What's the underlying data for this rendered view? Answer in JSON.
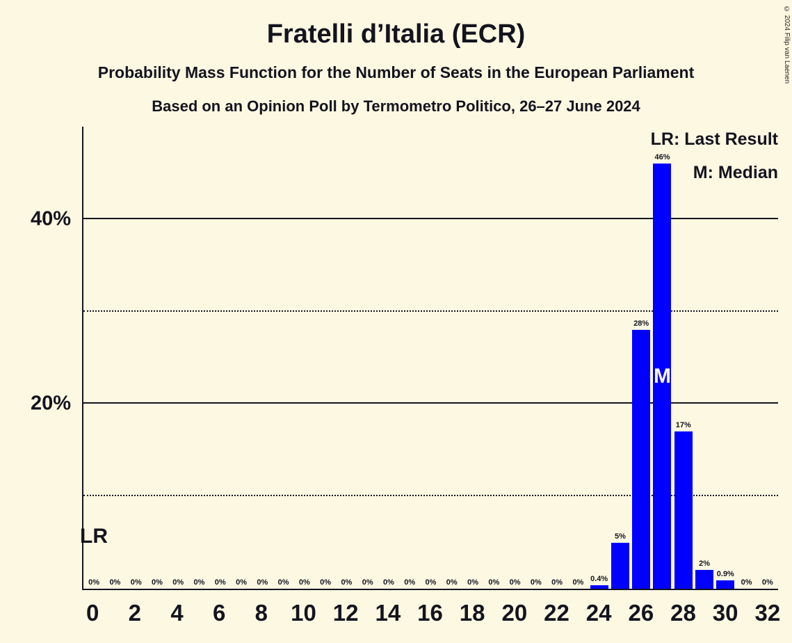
{
  "header": {
    "title": "Fratelli d’Italia (ECR)",
    "subtitle": "Probability Mass Function for the Number of Seats in the European Parliament",
    "source_line": "Based on an Opinion Poll by Termometro Politico, 26–27 June 2024",
    "copyright": "© 2024 Filip van Laenen"
  },
  "legend": {
    "last_result": "LR: Last Result",
    "median": "M: Median"
  },
  "colors": {
    "background": "#FCF8E2",
    "bar": "#0000FF",
    "text": "#14141E"
  },
  "chart_data": {
    "type": "bar",
    "title": "Fratelli d’Italia (ECR)",
    "categories": [
      0,
      1,
      2,
      3,
      4,
      5,
      6,
      7,
      8,
      9,
      10,
      11,
      12,
      13,
      14,
      15,
      16,
      17,
      18,
      19,
      20,
      21,
      22,
      23,
      24,
      25,
      26,
      27,
      28,
      29,
      30,
      31,
      32
    ],
    "values": [
      0,
      0,
      0,
      0,
      0,
      0,
      0,
      0,
      0,
      0,
      0,
      0,
      0,
      0,
      0,
      0,
      0,
      0,
      0,
      0,
      0,
      0,
      0,
      0,
      0.4,
      5,
      28,
      46,
      17,
      2,
      0.9,
      0,
      0
    ],
    "bar_labels": [
      "0%",
      "0%",
      "0%",
      "0%",
      "0%",
      "0%",
      "0%",
      "0%",
      "0%",
      "0%",
      "0%",
      "0%",
      "0%",
      "0%",
      "0%",
      "0%",
      "0%",
      "0%",
      "0%",
      "0%",
      "0%",
      "0%",
      "0%",
      "0%",
      "0.4%",
      "5%",
      "28%",
      "46%",
      "17%",
      "2%",
      "0.9%",
      "0%",
      "0%"
    ],
    "x_tick_labels": [
      "0",
      "2",
      "4",
      "6",
      "8",
      "10",
      "12",
      "14",
      "16",
      "18",
      "20",
      "22",
      "24",
      "26",
      "28",
      "30",
      "32"
    ],
    "yticks": [
      {
        "value": 20,
        "label": "20%"
      },
      {
        "value": 40,
        "label": "40%"
      }
    ],
    "gridlines_solid": [
      20,
      40
    ],
    "gridlines_dotted": [
      10,
      30
    ],
    "ylim": [
      0,
      50
    ],
    "grid": true,
    "legend_position": "top-right",
    "median_seat": 27,
    "median_label": "M",
    "lr_label": "LR"
  }
}
